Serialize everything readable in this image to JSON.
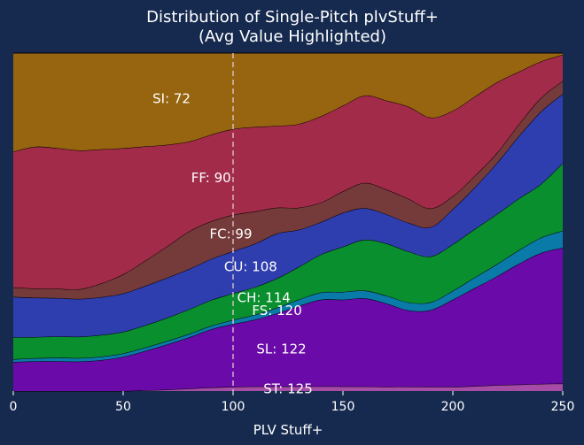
{
  "chart_data": {
    "type": "area",
    "stacked": true,
    "normalized": true,
    "title_lines": [
      "Distribution of Single-Pitch plvStuff+",
      "(Avg Value Highlighted)"
    ],
    "xlabel": "PLV Stuff+",
    "ylabel": "",
    "xlim": [
      0,
      250
    ],
    "ylim": [
      0,
      1
    ],
    "xticks": [
      0,
      50,
      100,
      150,
      200,
      250
    ],
    "grid": false,
    "highlight_line": {
      "x": 100,
      "style": "dashed"
    },
    "x": [
      0,
      10,
      20,
      30,
      40,
      50,
      60,
      70,
      80,
      90,
      100,
      110,
      120,
      130,
      140,
      150,
      160,
      170,
      180,
      190,
      200,
      210,
      220,
      230,
      240,
      250
    ],
    "series": [
      {
        "name": "ST",
        "label": "ST: 125",
        "color": "#a64ca6",
        "values": [
          0,
          0,
          0,
          0,
          0,
          0,
          0.002,
          0.004,
          0.007,
          0.01,
          0.012,
          0.013,
          0.013,
          0.013,
          0.013,
          0.013,
          0.013,
          0.012,
          0.012,
          0.012,
          0.012,
          0.014,
          0.017,
          0.019,
          0.021,
          0.022
        ]
      },
      {
        "name": "SL",
        "label": "SL: 122",
        "color": "#6a0aa8",
        "values": [
          0.085,
          0.087,
          0.087,
          0.086,
          0.09,
          0.1,
          0.115,
          0.132,
          0.15,
          0.17,
          0.182,
          0.193,
          0.209,
          0.226,
          0.24,
          0.246,
          0.251,
          0.236,
          0.21,
          0.218,
          0.248,
          0.28,
          0.315,
          0.355,
          0.385,
          0.402
        ]
      },
      {
        "name": "FS",
        "label": "FS: 120",
        "color": "#0a7aa8",
        "values": [
          0.008,
          0.009,
          0.01,
          0.01,
          0.01,
          0.01,
          0.01,
          0.01,
          0.01,
          0.01,
          0.012,
          0.014,
          0.016,
          0.018,
          0.02,
          0.022,
          0.022,
          0.022,
          0.022,
          0.022,
          0.025,
          0.03,
          0.035,
          0.04,
          0.045,
          0.05
        ]
      },
      {
        "name": "CH",
        "label": "CH: 114",
        "color": "#0a8f2e",
        "values": [
          0.064,
          0.062,
          0.062,
          0.062,
          0.063,
          0.063,
          0.065,
          0.068,
          0.072,
          0.075,
          0.077,
          0.08,
          0.084,
          0.092,
          0.105,
          0.128,
          0.145,
          0.148,
          0.14,
          0.13,
          0.132,
          0.138,
          0.145,
          0.152,
          0.158,
          0.2
        ]
      },
      {
        "name": "CU",
        "label": "CU: 108",
        "color": "#2e3eae",
        "values": [
          0.118,
          0.115,
          0.112,
          0.11,
          0.11,
          0.112,
          0.115,
          0.117,
          0.118,
          0.12,
          0.122,
          0.125,
          0.128,
          0.104,
          0.09,
          0.096,
          0.09,
          0.083,
          0.079,
          0.083,
          0.1,
          0.119,
          0.148,
          0.183,
          0.213,
          0.205
        ]
      },
      {
        "name": "FC",
        "label": "FC: 99",
        "color": "#753a3a",
        "values": [
          0.028,
          0.027,
          0.027,
          0.028,
          0.04,
          0.056,
          0.074,
          0.092,
          0.11,
          0.11,
          0.105,
          0.093,
          0.074,
          0.062,
          0.054,
          0.061,
          0.072,
          0.07,
          0.066,
          0.053,
          0.037,
          0.033,
          0.029,
          0.035,
          0.04,
          0.039
        ]
      },
      {
        "name": "FF",
        "label": "FF: 90",
        "color": "#a32b4a",
        "values": [
          0.397,
          0.415,
          0.41,
          0.404,
          0.39,
          0.369,
          0.334,
          0.297,
          0.263,
          0.253,
          0.249,
          0.244,
          0.234,
          0.235,
          0.239,
          0.243,
          0.249,
          0.253,
          0.254,
          0.258,
          0.243,
          0.226,
          0.205,
          0.155,
          0.108,
          0.077
        ]
      },
      {
        "name": "SI",
        "label": "SI: 72",
        "color": "#97650f",
        "values": [
          0.288,
          0.274,
          0.277,
          0.283,
          0.28,
          0.278,
          0.273,
          0.268,
          0.259,
          0.238,
          0.22,
          0.213,
          0.208,
          0.199,
          0.175,
          0.149,
          0.121,
          0.135,
          0.148,
          0.183,
          0.164,
          0.124,
          0.085,
          0.055,
          0.025,
          0.005
        ]
      }
    ]
  }
}
